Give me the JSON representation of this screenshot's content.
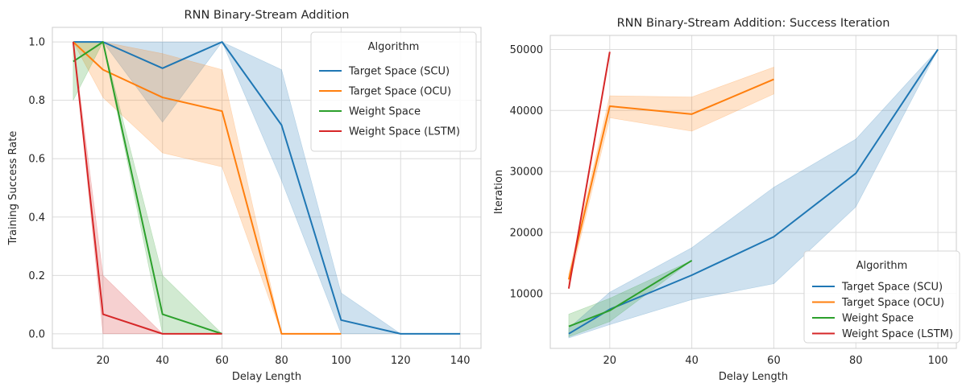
{
  "chart_data": [
    {
      "type": "line",
      "title": "RNN Binary-Stream Addition",
      "xlabel": "Delay Length",
      "ylabel": "Training Success Rate",
      "xlim": [
        3,
        147
      ],
      "ylim": [
        -0.05,
        1.05
      ],
      "xticks": [
        20,
        40,
        60,
        80,
        100,
        120,
        140
      ],
      "yticks": [
        0.0,
        0.2,
        0.4,
        0.6,
        0.8,
        1.0
      ],
      "ytick_labels": [
        "0.0",
        "0.2",
        "0.4",
        "0.6",
        "0.8",
        "1.0"
      ],
      "grid": true,
      "legend": {
        "title": "Algorithm",
        "placement": "top-right"
      },
      "series": [
        {
          "name": "Target Space (SCU)",
          "color": "#1f77b4",
          "x": [
            10,
            20,
            40,
            60,
            80,
            100,
            120,
            140
          ],
          "y": [
            1.0,
            1.0,
            0.91,
            1.0,
            0.715,
            0.047,
            0.0,
            0.0
          ],
          "lower": [
            1.0,
            1.0,
            0.725,
            1.0,
            0.525,
            0.0,
            0.0,
            0.0
          ],
          "upper": [
            1.0,
            1.0,
            1.0,
            1.0,
            0.905,
            0.14,
            0.0,
            0.0
          ]
        },
        {
          "name": "Target Space (OCU)",
          "color": "#ff7f0e",
          "x": [
            10,
            20,
            40,
            60,
            80,
            100
          ],
          "y": [
            1.0,
            0.905,
            0.81,
            0.763,
            0.0,
            0.0
          ],
          "lower": [
            1.0,
            0.81,
            0.62,
            0.572,
            0.0,
            0.0
          ],
          "upper": [
            1.0,
            1.0,
            0.96,
            0.905,
            0.0,
            0.0
          ]
        },
        {
          "name": "Weight Space",
          "color": "#2ca02c",
          "x": [
            10,
            20,
            40,
            60
          ],
          "y": [
            0.933,
            1.0,
            0.067,
            0.0
          ],
          "lower": [
            0.8,
            1.0,
            0.0,
            0.0
          ],
          "upper": [
            1.0,
            1.0,
            0.2,
            0.0
          ]
        },
        {
          "name": "Weight Space (LSTM)",
          "color": "#d62728",
          "x": [
            10,
            20,
            40,
            60
          ],
          "y": [
            1.0,
            0.067,
            0.0,
            0.0
          ],
          "lower": [
            1.0,
            0.0,
            0.0,
            0.0
          ],
          "upper": [
            1.0,
            0.2,
            0.0,
            0.0
          ]
        }
      ]
    },
    {
      "type": "line",
      "title": "RNN Binary-Stream Addition: Success Iteration",
      "xlabel": "Delay Length",
      "ylabel": "Iteration",
      "xlim": [
        5.5,
        104.5
      ],
      "ylim": [
        1000,
        52300
      ],
      "xticks": [
        20,
        40,
        60,
        80,
        100
      ],
      "yticks": [
        10000,
        20000,
        30000,
        40000,
        50000
      ],
      "ytick_labels": [
        "10000",
        "20000",
        "30000",
        "40000",
        "50000"
      ],
      "grid": true,
      "legend": {
        "title": "Algorithm",
        "placement": "bottom-right"
      },
      "series": [
        {
          "name": "Target Space (SCU)",
          "color": "#1f77b4",
          "x": [
            10,
            20,
            40,
            60,
            80,
            100
          ],
          "y": [
            3400,
            7400,
            13000,
            19300,
            29700,
            50000
          ],
          "lower": [
            2700,
            4900,
            9000,
            11600,
            24200,
            50000
          ],
          "upper": [
            4300,
            10200,
            17500,
            27400,
            35300,
            50000
          ]
        },
        {
          "name": "Target Space (OCU)",
          "color": "#ff7f0e",
          "x": [
            10,
            20,
            40,
            60
          ],
          "y": [
            12300,
            40700,
            39400,
            45100
          ],
          "lower": [
            11200,
            38800,
            36600,
            42700
          ],
          "upper": [
            13200,
            42400,
            42200,
            47100
          ]
        },
        {
          "name": "Weight Space",
          "color": "#2ca02c",
          "x": [
            10,
            20,
            40
          ],
          "y": [
            4600,
            7200,
            15400
          ],
          "lower": [
            2900,
            5400,
            15400
          ],
          "upper": [
            6600,
            9200,
            15400
          ]
        },
        {
          "name": "Weight Space (LSTM)",
          "color": "#d62728",
          "x": [
            10,
            20
          ],
          "y": [
            10800,
            49600
          ],
          "lower": [
            10800,
            49600
          ],
          "upper": [
            10800,
            49600
          ]
        }
      ]
    }
  ]
}
